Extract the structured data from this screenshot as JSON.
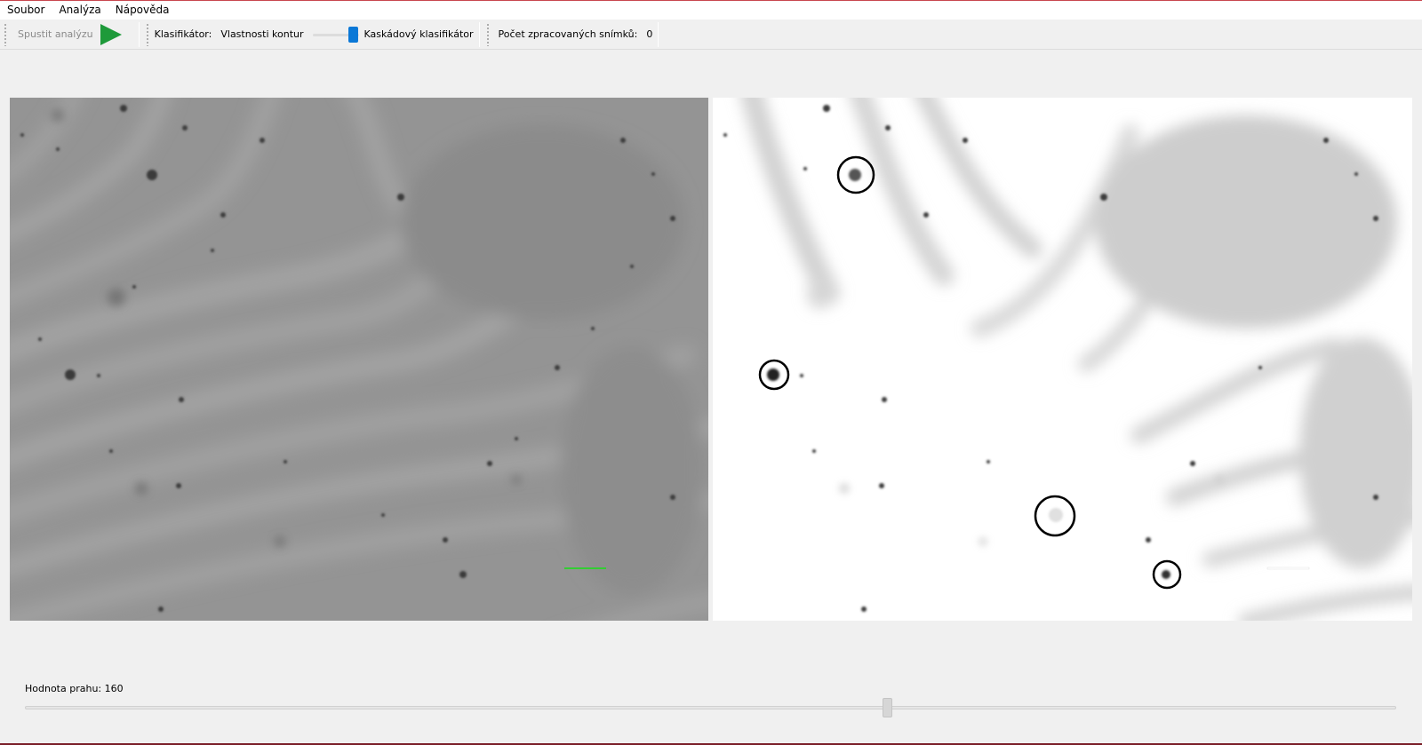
{
  "menubar": {
    "items": [
      {
        "label": "Soubor"
      },
      {
        "label": "Analýza"
      },
      {
        "label": "Nápověda"
      }
    ]
  },
  "toolbar": {
    "run_label": "Spustit analýzu",
    "run_icon": "play-icon",
    "run_icon_color": "#1e9a3a",
    "classifier_label": "Klasifikátor:",
    "classifier_option_left": "Vlastnosti kontur",
    "classifier_option_right": "Kaskádový klasifikátor",
    "classifier_selected": "Kaskádový klasifikátor",
    "classifier_switch_color": "#0a78d7",
    "processed_label": "Počet zpracovaných snímků:",
    "processed_value": "0"
  },
  "images": {
    "left": {
      "kind": "original microscope frame",
      "scale_bar_color": "#33cc33"
    },
    "right": {
      "kind": "thresholded frame with detections",
      "scale_bar_color": "#ffffff",
      "detections_count": 4
    }
  },
  "threshold": {
    "label": "Hodnota prahu:",
    "value": "160",
    "fraction": 0.63
  }
}
